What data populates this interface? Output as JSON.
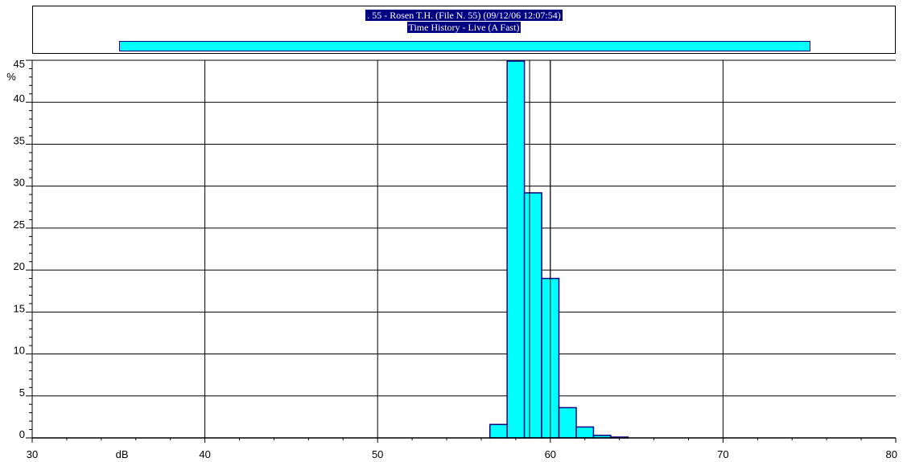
{
  "header": {
    "title_line1": ". 55 - Rosen T.H.  (File N. 55) (09/12/06 12:07:54)",
    "title_line2": "Time History - Live (A Fast)"
  },
  "colors": {
    "bar_fill": "#00ffff",
    "bar_stroke": "#000080",
    "title_bg": "#000080",
    "grid": "#000000"
  },
  "chart_data": {
    "type": "bar",
    "xlabel": "dB",
    "ylabel": "%",
    "xlim": [
      30,
      80
    ],
    "ylim": [
      0,
      45
    ],
    "x_ticks": [
      30,
      40,
      50,
      60,
      70,
      80
    ],
    "y_ticks": [
      0,
      5,
      10,
      15,
      20,
      25,
      30,
      35,
      40,
      45
    ],
    "bin_width": 1,
    "range_bar": [
      35,
      75
    ],
    "markers": [
      58.8,
      60
    ],
    "bins": [
      {
        "x": 57,
        "value": 1.6
      },
      {
        "x": 58,
        "value": 44.9
      },
      {
        "x": 59,
        "value": 29.2
      },
      {
        "x": 60,
        "value": 19.0
      },
      {
        "x": 61,
        "value": 3.6
      },
      {
        "x": 62,
        "value": 1.3
      },
      {
        "x": 63,
        "value": 0.3
      },
      {
        "x": 64,
        "value": 0.05
      }
    ],
    "grid": true
  }
}
